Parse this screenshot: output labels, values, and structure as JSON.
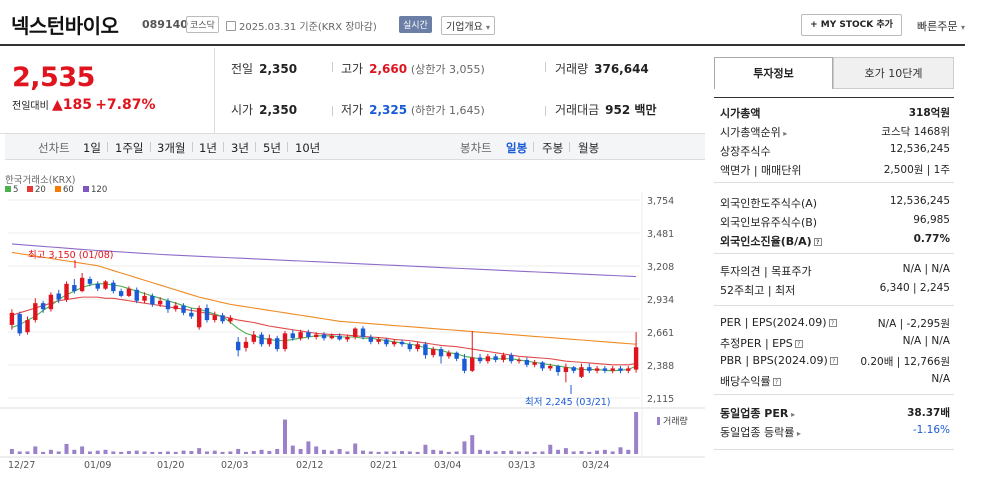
{
  "header": {
    "stock_name": "넥스턴바이오",
    "stock_code": "089140",
    "market_badge": "코스닥",
    "date_text": "2025.03.31 기준(KRX 장마감)",
    "realtime_badge": "실시간",
    "corp_info_button": "기업개요",
    "my_stock_button": "+ MY STOCK 추가",
    "quick_order_button": "빠른주문"
  },
  "price": {
    "current": "2,535",
    "change_label": "전일대비",
    "change_arrow": "▲",
    "change_amount": "185",
    "change_pct": "+7.87%"
  },
  "stats": {
    "prev_label": "전일",
    "prev_value": "2,350",
    "high_label": "고가",
    "high_value": "2,660",
    "high_sub": "(상한가 3,055)",
    "volume_label": "거래량",
    "volume_value": "376,644",
    "open_label": "시가",
    "open_value": "2,350",
    "low_label": "저가",
    "low_value": "2,325",
    "low_sub": "(하한가 1,645)",
    "amount_label": "거래대금",
    "amount_value": "952 백만"
  },
  "period_bar": {
    "line_label": "선차트",
    "periods": [
      "1일",
      "1주일",
      "3개월",
      "1년",
      "3년",
      "5년",
      "10년"
    ],
    "candle_label": "봉차트",
    "candles": [
      "일봉",
      "주봉",
      "월봉"
    ],
    "active_candle": "일봉"
  },
  "chart_data": {
    "type": "candlestick",
    "source_label": "한국거래소(KRX)",
    "legend": [
      {
        "name": "5",
        "color": "#4caf50"
      },
      {
        "name": "20",
        "color": "#e53935"
      },
      {
        "name": "60",
        "color": "#f57c00"
      },
      {
        "name": "120",
        "color": "#7e57c2"
      }
    ],
    "y_ticks": [
      "3,754",
      "3,481",
      "3,208",
      "2,934",
      "2,661",
      "2,388",
      "2,115"
    ],
    "ylim": [
      2115,
      3754
    ],
    "x_ticks": [
      "12/27",
      "01/09",
      "01/20",
      "02/03",
      "02/12",
      "02/21",
      "03/04",
      "03/13",
      "03/24"
    ],
    "volume_label": "거래량",
    "high_annotation": "최고 3,150 (01/08)",
    "low_annotation": "최저 2,245 (03/21)",
    "candles": [
      {
        "o": 2720,
        "c": 2820,
        "h": 2850,
        "l": 2680
      },
      {
        "o": 2810,
        "c": 2650,
        "h": 2830,
        "l": 2630
      },
      {
        "o": 2660,
        "c": 2760,
        "h": 2790,
        "l": 2640
      },
      {
        "o": 2760,
        "c": 2900,
        "h": 2940,
        "l": 2740
      },
      {
        "o": 2900,
        "c": 2850,
        "h": 2920,
        "l": 2820
      },
      {
        "o": 2850,
        "c": 2970,
        "h": 2990,
        "l": 2830
      },
      {
        "o": 2980,
        "c": 2930,
        "h": 3010,
        "l": 2900
      },
      {
        "o": 2930,
        "c": 3060,
        "h": 3080,
        "l": 2910
      },
      {
        "o": 3050,
        "c": 3000,
        "h": 3100,
        "l": 2980
      },
      {
        "o": 3000,
        "c": 3110,
        "h": 3150,
        "l": 2990
      },
      {
        "o": 3100,
        "c": 3060,
        "h": 3120,
        "l": 3040
      },
      {
        "o": 3060,
        "c": 3020,
        "h": 3080,
        "l": 3000
      },
      {
        "o": 3020,
        "c": 3080,
        "h": 3090,
        "l": 3010
      },
      {
        "o": 3070,
        "c": 3000,
        "h": 3090,
        "l": 2980
      },
      {
        "o": 3000,
        "c": 2960,
        "h": 3020,
        "l": 2950
      },
      {
        "o": 2960,
        "c": 3020,
        "h": 3040,
        "l": 2950
      },
      {
        "o": 3010,
        "c": 2920,
        "h": 3030,
        "l": 2900
      },
      {
        "o": 2920,
        "c": 2960,
        "h": 2990,
        "l": 2900
      },
      {
        "o": 2960,
        "c": 2890,
        "h": 2980,
        "l": 2870
      },
      {
        "o": 2890,
        "c": 2920,
        "h": 2950,
        "l": 2870
      },
      {
        "o": 2920,
        "c": 2850,
        "h": 2940,
        "l": 2820
      },
      {
        "o": 2850,
        "c": 2880,
        "h": 2910,
        "l": 2830
      },
      {
        "o": 2880,
        "c": 2820,
        "h": 2900,
        "l": 2800
      },
      {
        "o": 2820,
        "c": 2790,
        "h": 2860,
        "l": 2770
      },
      {
        "o": 2700,
        "c": 2860,
        "h": 2880,
        "l": 2680
      },
      {
        "o": 2860,
        "c": 2760,
        "h": 2890,
        "l": 2740
      },
      {
        "o": 2760,
        "c": 2800,
        "h": 2830,
        "l": 2740
      },
      {
        "o": 2800,
        "c": 2750,
        "h": 2820,
        "l": 2730
      },
      {
        "o": 2750,
        "c": 2780,
        "h": 2800,
        "l": 2730
      },
      {
        "o": 2580,
        "c": 2510,
        "h": 2620,
        "l": 2460
      },
      {
        "o": 2530,
        "c": 2580,
        "h": 2620,
        "l": 2500
      },
      {
        "o": 2580,
        "c": 2640,
        "h": 2670,
        "l": 2560
      },
      {
        "o": 2640,
        "c": 2560,
        "h": 2660,
        "l": 2540
      },
      {
        "o": 2560,
        "c": 2610,
        "h": 2640,
        "l": 2540
      },
      {
        "o": 2610,
        "c": 2520,
        "h": 2630,
        "l": 2500
      },
      {
        "o": 2520,
        "c": 2650,
        "h": 2670,
        "l": 2500
      },
      {
        "o": 2650,
        "c": 2610,
        "h": 2680,
        "l": 2590
      },
      {
        "o": 2610,
        "c": 2660,
        "h": 2680,
        "l": 2590
      },
      {
        "o": 2660,
        "c": 2620,
        "h": 2680,
        "l": 2600
      },
      {
        "o": 2620,
        "c": 2640,
        "h": 2660,
        "l": 2600
      },
      {
        "o": 2640,
        "c": 2610,
        "h": 2660,
        "l": 2590
      },
      {
        "o": 2610,
        "c": 2630,
        "h": 2650,
        "l": 2600
      },
      {
        "o": 2630,
        "c": 2600,
        "h": 2650,
        "l": 2590
      },
      {
        "o": 2600,
        "c": 2620,
        "h": 2640,
        "l": 2580
      },
      {
        "o": 2620,
        "c": 2690,
        "h": 2700,
        "l": 2600
      },
      {
        "o": 2690,
        "c": 2620,
        "h": 2710,
        "l": 2600
      },
      {
        "o": 2620,
        "c": 2580,
        "h": 2640,
        "l": 2560
      },
      {
        "o": 2580,
        "c": 2600,
        "h": 2620,
        "l": 2560
      },
      {
        "o": 2600,
        "c": 2560,
        "h": 2610,
        "l": 2540
      },
      {
        "o": 2560,
        "c": 2580,
        "h": 2600,
        "l": 2540
      },
      {
        "o": 2580,
        "c": 2560,
        "h": 2600,
        "l": 2540
      },
      {
        "o": 2560,
        "c": 2520,
        "h": 2580,
        "l": 2500
      },
      {
        "o": 2520,
        "c": 2560,
        "h": 2580,
        "l": 2500
      },
      {
        "o": 2560,
        "c": 2470,
        "h": 2580,
        "l": 2440
      },
      {
        "o": 2470,
        "c": 2520,
        "h": 2540,
        "l": 2450
      },
      {
        "o": 2520,
        "c": 2460,
        "h": 2540,
        "l": 2400
      },
      {
        "o": 2460,
        "c": 2490,
        "h": 2510,
        "l": 2440
      },
      {
        "o": 2490,
        "c": 2440,
        "h": 2500,
        "l": 2420
      },
      {
        "o": 2440,
        "c": 2340,
        "h": 2480,
        "l": 2320
      },
      {
        "o": 2340,
        "c": 2450,
        "h": 2670,
        "l": 2330
      },
      {
        "o": 2450,
        "c": 2420,
        "h": 2480,
        "l": 2400
      },
      {
        "o": 2420,
        "c": 2460,
        "h": 2480,
        "l": 2400
      },
      {
        "o": 2460,
        "c": 2430,
        "h": 2480,
        "l": 2410
      },
      {
        "o": 2430,
        "c": 2470,
        "h": 2490,
        "l": 2410
      },
      {
        "o": 2470,
        "c": 2420,
        "h": 2490,
        "l": 2400
      },
      {
        "o": 2420,
        "c": 2430,
        "h": 2450,
        "l": 2400
      },
      {
        "o": 2430,
        "c": 2390,
        "h": 2450,
        "l": 2370
      },
      {
        "o": 2390,
        "c": 2410,
        "h": 2430,
        "l": 2370
      },
      {
        "o": 2410,
        "c": 2360,
        "h": 2420,
        "l": 2340
      },
      {
        "o": 2360,
        "c": 2380,
        "h": 2400,
        "l": 2340
      },
      {
        "o": 2380,
        "c": 2330,
        "h": 2390,
        "l": 2300
      },
      {
        "o": 2330,
        "c": 2370,
        "h": 2400,
        "l": 2245
      },
      {
        "o": 2370,
        "c": 2340,
        "h": 2380,
        "l": 2320
      },
      {
        "o": 2290,
        "c": 2370,
        "h": 2400,
        "l": 2280
      },
      {
        "o": 2370,
        "c": 2340,
        "h": 2400,
        "l": 2320
      },
      {
        "o": 2340,
        "c": 2360,
        "h": 2380,
        "l": 2320
      },
      {
        "o": 2360,
        "c": 2340,
        "h": 2380,
        "l": 2320
      },
      {
        "o": 2340,
        "c": 2360,
        "h": 2380,
        "l": 2320
      },
      {
        "o": 2360,
        "c": 2340,
        "h": 2380,
        "l": 2320
      },
      {
        "o": 2340,
        "c": 2360,
        "h": 2380,
        "l": 2320
      },
      {
        "o": 2350,
        "c": 2535,
        "h": 2660,
        "l": 2325
      }
    ],
    "volumes": [
      0.12,
      0.06,
      0.06,
      0.18,
      0.05,
      0.1,
      0.06,
      0.24,
      0.1,
      0.18,
      0.06,
      0.08,
      0.1,
      0.06,
      0.05,
      0.07,
      0.08,
      0.06,
      0.05,
      0.05,
      0.06,
      0.05,
      0.08,
      0.07,
      0.14,
      0.06,
      0.08,
      0.05,
      0.06,
      0.12,
      0.05,
      0.07,
      0.1,
      0.07,
      0.12,
      0.82,
      0.2,
      0.12,
      0.3,
      0.18,
      0.1,
      0.08,
      0.12,
      0.06,
      0.25,
      0.08,
      0.06,
      0.05,
      0.06,
      0.06,
      0.07,
      0.06,
      0.05,
      0.22,
      0.1,
      0.08,
      0.05,
      0.06,
      0.3,
      0.45,
      0.1,
      0.08,
      0.06,
      0.07,
      0.08,
      0.06,
      0.06,
      0.05,
      0.06,
      0.22,
      0.1,
      0.14,
      0.06,
      0.07,
      0.05,
      0.08,
      0.1,
      0.06,
      0.16,
      0.1,
      1.0
    ],
    "ma5": [
      2700,
      2720,
      2760,
      2790,
      2840,
      2880,
      2930,
      2970,
      3000,
      3030,
      3050,
      3060,
      3060,
      3050,
      3040,
      3020,
      3000,
      2980,
      2960,
      2940,
      2920,
      2900,
      2880,
      2860,
      2850,
      2830,
      2810,
      2790,
      2740,
      2690,
      2650,
      2630,
      2610,
      2600,
      2590,
      2590,
      2600,
      2610,
      2620,
      2630,
      2630,
      2630,
      2620,
      2620,
      2620,
      2610,
      2610,
      2600,
      2590,
      2580,
      2570,
      2560,
      2550,
      2530,
      2520,
      2510,
      2490,
      2480,
      2460,
      2450,
      2440,
      2440,
      2440,
      2440,
      2440,
      2430,
      2420,
      2410,
      2400,
      2390,
      2380,
      2370,
      2360,
      2350,
      2350,
      2350,
      2345,
      2340,
      2345,
      2350,
      2380
    ],
    "ma20": [
      2800,
      2820,
      2840,
      2860,
      2880,
      2900,
      2920,
      2930,
      2940,
      2950,
      2950,
      2950,
      2940,
      2940,
      2930,
      2920,
      2910,
      2900,
      2890,
      2880,
      2870,
      2860,
      2850,
      2840,
      2830,
      2815,
      2800,
      2790,
      2775,
      2760,
      2750,
      2740,
      2725,
      2710,
      2700,
      2690,
      2680,
      2670,
      2660,
      2650,
      2645,
      2640,
      2640,
      2635,
      2630,
      2625,
      2620,
      2615,
      2610,
      2600,
      2595,
      2590,
      2580,
      2570,
      2560,
      2550,
      2545,
      2540,
      2530,
      2520,
      2510,
      2500,
      2490,
      2480,
      2470,
      2460,
      2455,
      2450,
      2445,
      2440,
      2430,
      2420,
      2415,
      2410,
      2405,
      2400,
      2395,
      2390,
      2390,
      2390,
      2400
    ],
    "ma60": [
      3320,
      3310,
      3300,
      3290,
      3280,
      3270,
      3260,
      3250,
      3240,
      3230,
      3220,
      3210,
      3190,
      3170,
      3150,
      3130,
      3110,
      3090,
      3070,
      3050,
      3030,
      3010,
      2990,
      2970,
      2950,
      2935,
      2920,
      2905,
      2890,
      2880,
      2870,
      2860,
      2850,
      2840,
      2830,
      2820,
      2810,
      2800,
      2790,
      2780,
      2770,
      2760,
      2750,
      2745,
      2740,
      2735,
      2730,
      2725,
      2720,
      2715,
      2710,
      2705,
      2700,
      2695,
      2690,
      2685,
      2680,
      2675,
      2670,
      2665,
      2660,
      2655,
      2650,
      2645,
      2640,
      2635,
      2630,
      2625,
      2620,
      2615,
      2610,
      2605,
      2600,
      2595,
      2590,
      2585,
      2580,
      2575,
      2570,
      2565,
      2560
    ],
    "ma120": [
      3390,
      3385,
      3380,
      3375,
      3370,
      3365,
      3360,
      3355,
      3350,
      3345,
      3340,
      3336,
      3332,
      3328,
      3324,
      3320,
      3316,
      3312,
      3308,
      3304,
      3300,
      3297,
      3294,
      3291,
      3288,
      3285,
      3282,
      3279,
      3276,
      3273,
      3270,
      3267,
      3264,
      3261,
      3258,
      3255,
      3252,
      3249,
      3246,
      3243,
      3240,
      3237,
      3234,
      3231,
      3228,
      3225,
      3222,
      3219,
      3216,
      3213,
      3210,
      3207,
      3204,
      3201,
      3198,
      3195,
      3192,
      3189,
      3186,
      3183,
      3180,
      3177,
      3174,
      3171,
      3168,
      3165,
      3162,
      3159,
      3156,
      3153,
      3150,
      3147,
      3144,
      3141,
      3138,
      3135,
      3132,
      3129,
      3126,
      3123,
      3120
    ]
  },
  "right_panel": {
    "tab_active": "투자정보",
    "tab_other": "호가 10단계",
    "rows1": [
      {
        "k": "시가총액",
        "v": "318억원",
        "bold": true
      },
      {
        "k": "시가총액순위",
        "v": "코스닥 1468위",
        "arrow": true
      },
      {
        "k": "상장주식수",
        "v": "12,536,245"
      },
      {
        "k": "액면가 | 매매단위",
        "v": "2,500원 | 1주"
      }
    ],
    "rows2": [
      {
        "k": "외국인한도주식수(A)",
        "v": "12,536,245"
      },
      {
        "k": "외국인보유주식수(B)",
        "v": "96,985"
      },
      {
        "k": "외국인소진율(B/A)",
        "v": "0.77%",
        "bold": true,
        "q": true
      }
    ],
    "rows3": [
      {
        "k": "투자의견 | 목표주가",
        "v": "N/A | N/A"
      },
      {
        "k": "52주최고 | 최저",
        "v": "6,340 | 2,245"
      }
    ],
    "rows4": [
      {
        "k": "PER | EPS(2024.09)",
        "v": "N/A | -2,295원",
        "q": true
      },
      {
        "k": "추정PER | EPS",
        "v": "N/A | N/A",
        "q": true
      },
      {
        "k": "PBR | BPS(2024.09)",
        "v": "0.20배 | 12,766원",
        "q": true
      },
      {
        "k": "배당수익률",
        "v": "N/A",
        "q": true
      }
    ],
    "rows5": [
      {
        "k": "동일업종 PER",
        "v": "38.37배",
        "bold": true,
        "arrow": true
      },
      {
        "k": "동일업종 등락률",
        "v": "-1.16%",
        "blue": true,
        "arrow": true
      }
    ]
  }
}
